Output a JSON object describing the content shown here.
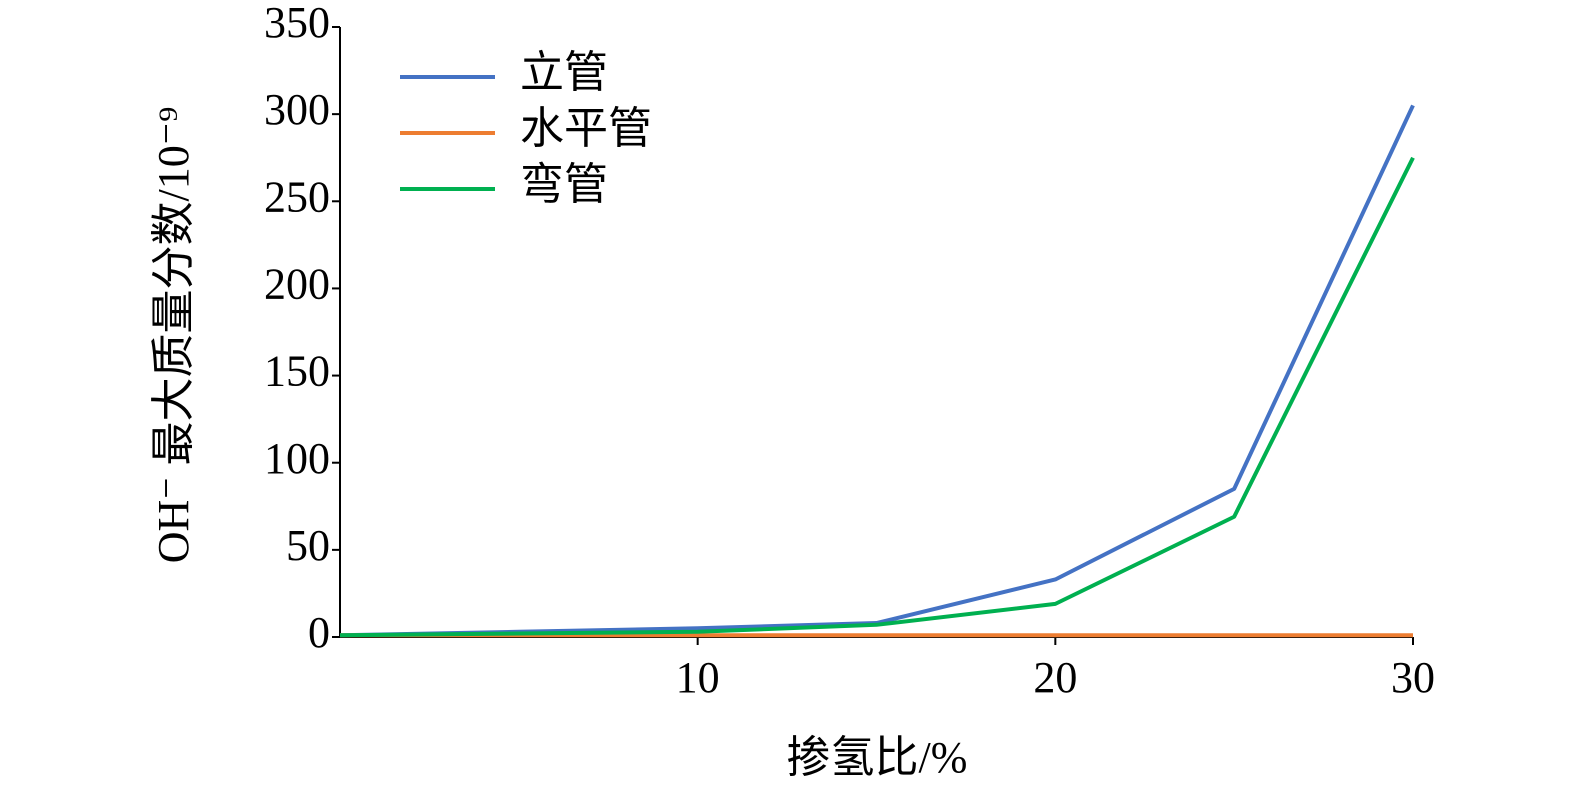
{
  "chart_data": {
    "type": "line",
    "x_label": "掺氢比/%",
    "y_label": "OH⁻ 最大质量分数/10⁻⁹",
    "x": [
      0,
      5,
      10,
      15,
      20,
      25,
      30
    ],
    "series": [
      {
        "name": "立管",
        "color": "#4472c4",
        "values": [
          1,
          3,
          5,
          8,
          33,
          85,
          305
        ]
      },
      {
        "name": "水平管",
        "color": "#ed7d31",
        "values": [
          1,
          1,
          1,
          1,
          1,
          1,
          1
        ]
      },
      {
        "name": "弯管",
        "color": "#00b050",
        "values": [
          1,
          2,
          3,
          7,
          19,
          69,
          275
        ]
      }
    ],
    "xlim": [
      0,
      30
    ],
    "xticks": [
      10,
      20,
      30
    ],
    "ylim": [
      0,
      350
    ],
    "yticks": [
      0,
      50,
      100,
      150,
      200,
      250,
      300,
      350
    ],
    "grid": false,
    "legend_position": "upper-left"
  }
}
